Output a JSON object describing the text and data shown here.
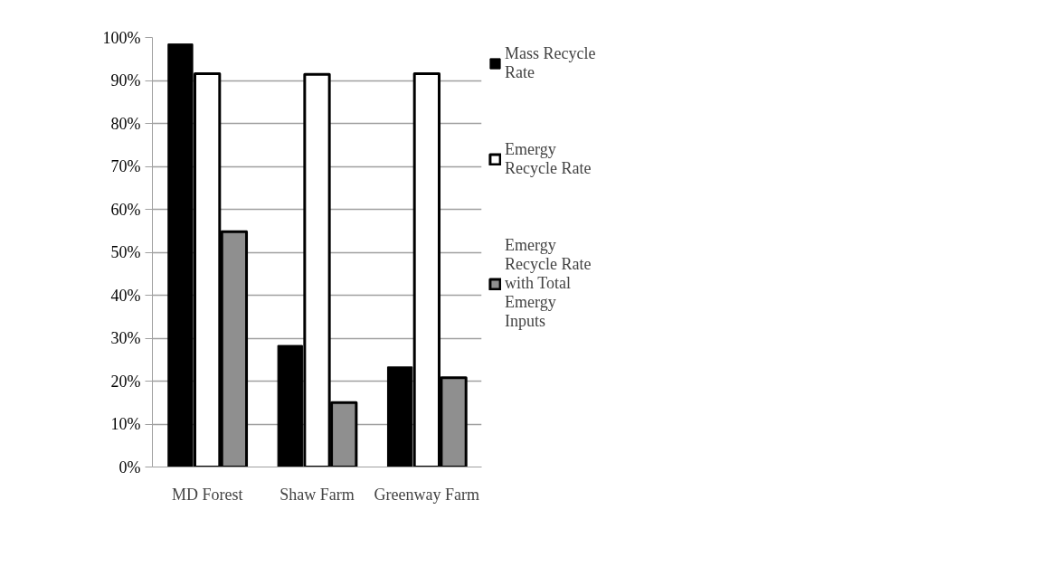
{
  "chart_data": {
    "type": "bar",
    "categories": [
      "MD Forest",
      "Shaw Farm",
      "Greenway Farm"
    ],
    "series": [
      {
        "name": "Mass Recycle Rate",
        "color": "#000000",
        "values": [
          98.5,
          28.3,
          23.3
        ]
      },
      {
        "name": "Emergy Recycle Rate",
        "color": "#ffffff",
        "values": [
          91.6,
          91.4,
          91.6
        ]
      },
      {
        "name": "Emergy Recycle Rate with Total Emergy Inputs",
        "color": "#8f8f8f",
        "values": [
          54.8,
          15.0,
          20.8
        ]
      }
    ],
    "ylim": [
      0,
      100
    ],
    "yticks": [
      {
        "value": 0,
        "label": "0%"
      },
      {
        "value": 10,
        "label": "10%"
      },
      {
        "value": 20,
        "label": "20%"
      },
      {
        "value": 30,
        "label": "30%"
      },
      {
        "value": 40,
        "label": "40%"
      },
      {
        "value": 50,
        "label": "50%"
      },
      {
        "value": 60,
        "label": "60%"
      },
      {
        "value": 70,
        "label": "70%"
      },
      {
        "value": 80,
        "label": "80%"
      },
      {
        "value": 90,
        "label": "90%"
      },
      {
        "value": 100,
        "label": "100%"
      }
    ],
    "grid": "y",
    "legend": "right"
  }
}
